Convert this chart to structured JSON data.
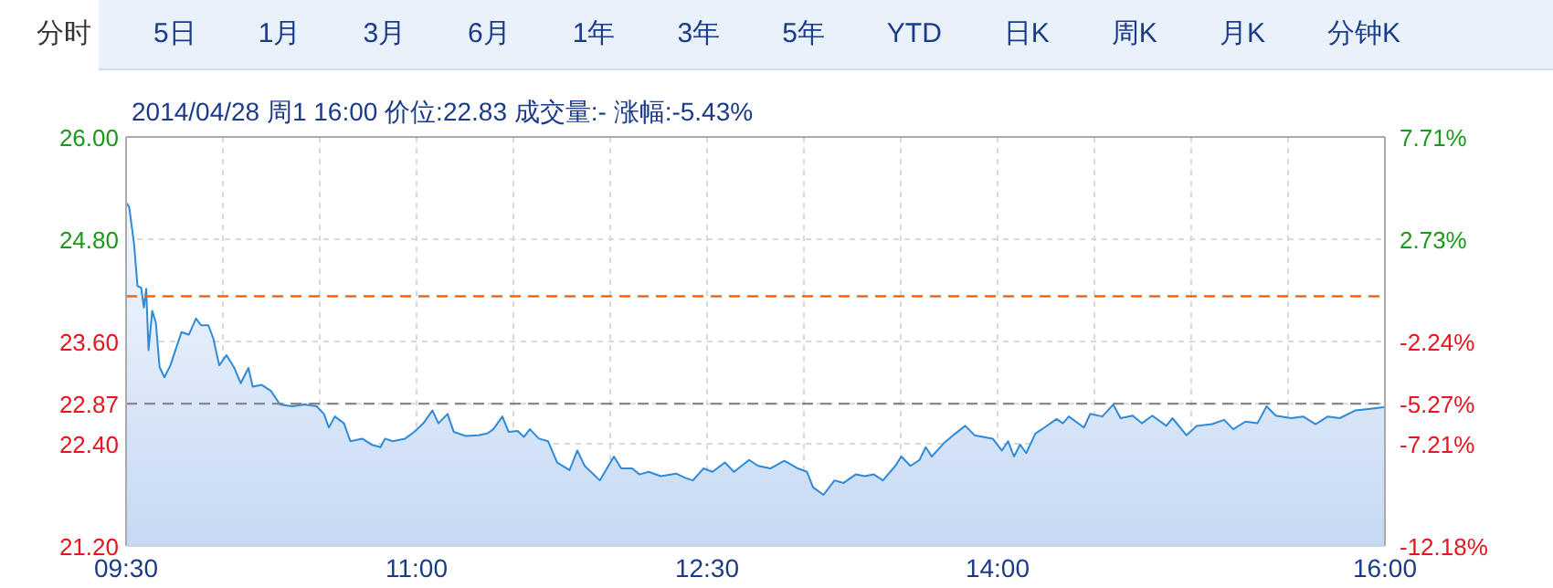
{
  "chart_data": {
    "type": "area",
    "title": "2014/04/28 周1 16:00  价位:22.83  成交量:-  涨幅:-5.43%",
    "annotations": [
      "分时",
      "5日",
      "1月",
      "3月",
      "6月",
      "1年",
      "3年",
      "5年",
      "YTD",
      "日K",
      "周K",
      "月K",
      "分钟K"
    ],
    "series": [
      {
        "color": "#2f8ad8",
        "x": [
          9.5,
          9.516,
          9.541,
          9.559,
          9.578,
          9.592,
          9.604,
          9.616,
          9.635,
          9.654,
          9.673,
          9.698,
          9.729,
          9.761,
          9.786,
          9.824,
          9.861,
          9.887,
          9.925,
          9.95,
          9.981,
          10.019,
          10.059,
          10.092,
          10.132,
          10.154,
          10.201,
          10.248,
          10.295,
          10.358,
          10.422,
          10.484,
          10.522,
          10.547,
          10.578,
          10.625,
          10.658,
          10.72,
          10.767,
          10.814,
          10.837,
          10.877,
          10.941,
          10.988,
          11.035,
          11.082,
          11.113,
          11.16,
          11.192,
          11.255,
          11.318,
          11.365,
          11.396,
          11.443,
          11.475,
          11.522,
          11.554,
          11.585,
          11.632,
          11.679,
          11.726,
          11.79,
          11.83,
          11.868,
          11.946,
          12.019,
          12.057,
          12.113,
          12.151,
          12.198,
          12.261,
          12.34,
          12.387,
          12.427,
          12.481,
          12.528,
          12.592,
          12.639,
          12.717,
          12.764,
          12.827,
          12.899,
          12.969,
          13.016,
          13.047,
          13.101,
          13.158,
          13.205,
          13.267,
          13.314,
          13.361,
          13.408,
          13.472,
          13.503,
          13.55,
          13.597,
          13.629,
          13.66,
          13.724,
          13.771,
          13.833,
          13.881,
          13.975,
          14.022,
          14.054,
          14.085,
          14.116,
          14.148,
          14.195,
          14.242,
          14.305,
          14.337,
          14.368,
          14.446,
          14.478,
          14.541,
          14.597,
          14.635,
          14.698,
          14.745,
          14.799,
          14.871,
          14.903,
          14.975,
          15.028,
          15.107,
          15.17,
          15.217,
          15.28,
          15.342,
          15.389,
          15.437,
          15.516,
          15.578,
          15.642,
          15.705,
          15.767,
          15.846,
          15.925,
          16.0
        ],
        "values": [
          25.23,
          25.18,
          24.75,
          24.25,
          24.23,
          24.0,
          24.22,
          23.5,
          23.96,
          23.82,
          23.3,
          23.18,
          23.32,
          23.54,
          23.71,
          23.68,
          23.87,
          23.79,
          23.79,
          23.64,
          23.32,
          23.44,
          23.29,
          23.11,
          23.29,
          23.07,
          23.09,
          23.02,
          22.86,
          22.84,
          22.86,
          22.84,
          22.75,
          22.59,
          22.72,
          22.64,
          22.43,
          22.46,
          22.39,
          22.36,
          22.46,
          22.43,
          22.46,
          22.54,
          22.64,
          22.79,
          22.64,
          22.75,
          22.54,
          22.49,
          22.5,
          22.52,
          22.57,
          22.72,
          22.54,
          22.55,
          22.48,
          22.57,
          22.46,
          22.43,
          22.18,
          22.09,
          22.32,
          22.14,
          21.97,
          22.25,
          22.11,
          22.11,
          22.04,
          22.07,
          22.02,
          22.05,
          22.0,
          21.97,
          22.11,
          22.07,
          22.18,
          22.07,
          22.21,
          22.14,
          22.11,
          22.2,
          22.11,
          22.07,
          21.89,
          21.8,
          21.97,
          21.94,
          22.04,
          22.02,
          22.04,
          21.97,
          22.14,
          22.25,
          22.14,
          22.21,
          22.36,
          22.25,
          22.41,
          22.5,
          22.61,
          22.5,
          22.46,
          22.32,
          22.43,
          22.25,
          22.39,
          22.29,
          22.52,
          22.59,
          22.69,
          22.64,
          22.72,
          22.59,
          22.75,
          22.72,
          22.86,
          22.7,
          22.73,
          22.64,
          22.73,
          22.61,
          22.7,
          22.5,
          22.61,
          22.63,
          22.68,
          22.57,
          22.66,
          22.64,
          22.84,
          22.73,
          22.7,
          22.72,
          22.63,
          22.72,
          22.7,
          22.79,
          22.81,
          22.83
        ]
      }
    ],
    "xlim": [
      9.5,
      16
    ],
    "xticks": [
      {
        "value": 9.5,
        "label": "09:30"
      },
      {
        "value": 10,
        "label": null
      },
      {
        "value": 10.5,
        "label": null
      },
      {
        "value": 11,
        "label": "11:00"
      },
      {
        "value": 11.5,
        "label": null
      },
      {
        "value": 12,
        "label": null
      },
      {
        "value": 12.5,
        "label": "12:30"
      },
      {
        "value": 13,
        "label": null
      },
      {
        "value": 13.5,
        "label": null
      },
      {
        "value": 14,
        "label": "14:00"
      },
      {
        "value": 14.5,
        "label": null
      },
      {
        "value": 15,
        "label": null
      },
      {
        "value": 15.5,
        "label": null
      },
      {
        "value": 16,
        "label": "16:00"
      }
    ],
    "ylim": [
      21.2,
      26
    ],
    "yticks": [
      {
        "value": 21.2,
        "label": "21.20"
      },
      {
        "value": 22.4,
        "label": "22.40"
      },
      {
        "value": 22.87,
        "label": "22.87"
      },
      {
        "value": 23.6,
        "label": "23.60"
      },
      {
        "value": 24.8,
        "label": "24.80"
      },
      {
        "value": 26,
        "label": "26.00"
      }
    ],
    "y2lim": [
      -12.18,
      7.71
    ],
    "y2ticks": [
      {
        "value": -12.18,
        "label": "-12.18%"
      },
      {
        "value": -7.21,
        "label": "-7.21%"
      },
      {
        "value": -5.27,
        "label": "-5.27%"
      },
      {
        "value": -2.24,
        "label": "-2.24%"
      },
      {
        "value": 2.73,
        "label": "2.73%"
      },
      {
        "value": 7.71,
        "label": "7.71%"
      }
    ],
    "ref_lines": [
      {
        "axis": "y",
        "value": 24.13,
        "color": "#ff6600",
        "line_style": "dashed"
      },
      {
        "axis": "y",
        "value": 22.87,
        "color": "#888888",
        "line_style": "dashed"
      }
    ],
    "grid": true
  }
}
